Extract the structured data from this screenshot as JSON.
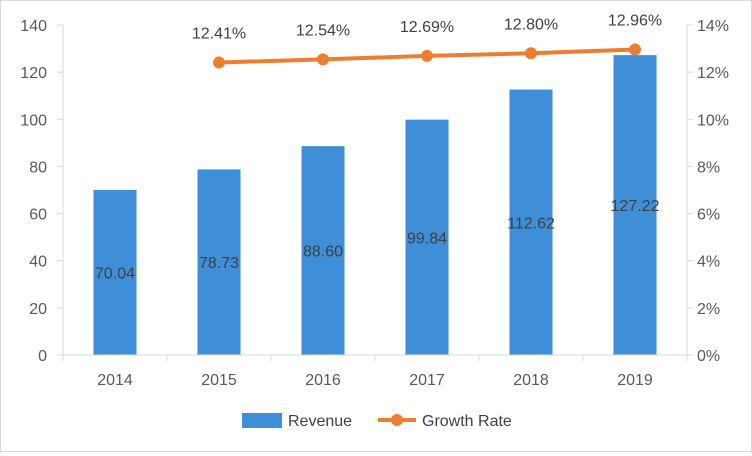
{
  "chart_data": {
    "type": "bar",
    "categories": [
      "2014",
      "2015",
      "2016",
      "2017",
      "2018",
      "2019"
    ],
    "series": [
      {
        "name": "Revenue",
        "type": "bar",
        "axis": "left",
        "color": "#3f8fd8",
        "values": [
          70.04,
          78.73,
          88.6,
          99.84,
          112.62,
          127.22
        ],
        "labels": [
          "70.04",
          "78.73",
          "88.60",
          "99.84",
          "112.62",
          "127.22"
        ]
      },
      {
        "name": "Growth Rate",
        "type": "line",
        "axis": "right",
        "color": "#ed7d31",
        "values": [
          null,
          12.41,
          12.54,
          12.69,
          12.8,
          12.96
        ],
        "labels": [
          "",
          "12.41%",
          "12.54%",
          "12.69%",
          "12.80%",
          "12.96%"
        ]
      }
    ],
    "y_left": {
      "min": 0,
      "max": 140,
      "step": 20,
      "ticks": [
        "0",
        "20",
        "40",
        "60",
        "80",
        "100",
        "120",
        "140"
      ]
    },
    "y_right": {
      "min": 0,
      "max": 14,
      "step": 2,
      "ticks": [
        "0%",
        "2%",
        "4%",
        "6%",
        "8%",
        "10%",
        "12%",
        "14%"
      ]
    },
    "grid": false,
    "legend_position": "bottom"
  }
}
